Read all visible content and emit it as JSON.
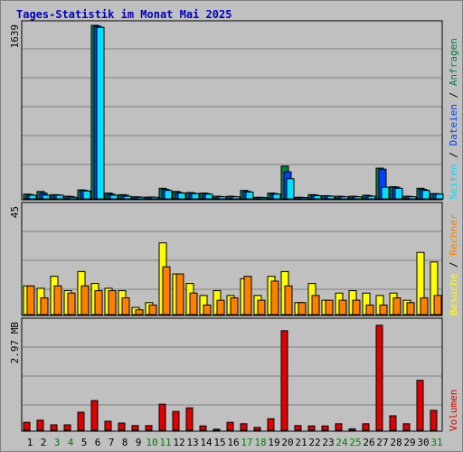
{
  "title": "Tages-Statistik im Monat Mai 2025",
  "colors": {
    "title": "#0000c0",
    "panel_bg": "#c0c0c0",
    "grid": "#808080",
    "anfragen": "#008040",
    "dateien": "#0040ff",
    "seiten": "#00e0ff",
    "besuche": "#ffff00",
    "rechner": "#ff8000",
    "volumen": "#e00000",
    "weekend": "#008000",
    "day": "#000000"
  },
  "chart_data": [
    {
      "type": "bar",
      "panel": "top",
      "scale_label": "1639",
      "ylim": [
        0,
        1639
      ],
      "categories": [
        "1",
        "2",
        "3",
        "4",
        "5",
        "6",
        "7",
        "8",
        "9",
        "10",
        "11",
        "12",
        "13",
        "14",
        "15",
        "16",
        "17",
        "18",
        "19",
        "20",
        "21",
        "22",
        "23",
        "24",
        "25",
        "26",
        "27",
        "28",
        "29",
        "30",
        "31"
      ],
      "weekend_days": [
        "3",
        "4",
        "10",
        "11",
        "17",
        "18",
        "24",
        "25",
        "31"
      ],
      "series": [
        {
          "name": "Anfragen",
          "color_key": "anfragen",
          "values": [
            45,
            70,
            40,
            25,
            85,
            1639,
            55,
            40,
            20,
            18,
            100,
            70,
            60,
            55,
            25,
            25,
            80,
            15,
            55,
            310,
            15,
            40,
            30,
            25,
            25,
            35,
            290,
            115,
            25,
            100,
            50
          ]
        },
        {
          "name": "Dateien",
          "color_key": "dateien",
          "values": [
            40,
            55,
            38,
            22,
            80,
            1630,
            45,
            35,
            18,
            16,
            90,
            60,
            55,
            50,
            22,
            22,
            70,
            14,
            50,
            255,
            14,
            35,
            28,
            22,
            22,
            30,
            280,
            110,
            22,
            90,
            48
          ]
        },
        {
          "name": "Seiten",
          "color_key": "seiten",
          "values": [
            35,
            35,
            35,
            15,
            75,
            1620,
            35,
            25,
            15,
            15,
            80,
            55,
            50,
            45,
            20,
            20,
            65,
            12,
            45,
            190,
            12,
            30,
            25,
            20,
            20,
            25,
            110,
            100,
            20,
            80,
            45
          ]
        }
      ]
    },
    {
      "type": "bar",
      "panel": "middle",
      "scale_label": "45",
      "ylim": [
        0,
        45
      ],
      "categories": [
        "1",
        "2",
        "3",
        "4",
        "5",
        "6",
        "7",
        "8",
        "9",
        "10",
        "11",
        "12",
        "13",
        "14",
        "15",
        "16",
        "17",
        "18",
        "19",
        "20",
        "21",
        "22",
        "23",
        "24",
        "25",
        "26",
        "27",
        "28",
        "29",
        "30",
        "31"
      ],
      "series": [
        {
          "name": "Besuche",
          "color_key": "besuche",
          "values": [
            12,
            11,
            16,
            10,
            18,
            13,
            11,
            10,
            3,
            5,
            30,
            17,
            13,
            8,
            10,
            8,
            15,
            8,
            16,
            18,
            5,
            13,
            6,
            9,
            10,
            9,
            8,
            9,
            6,
            26,
            22
          ]
        },
        {
          "name": "Rechner",
          "color_key": "rechner",
          "values": [
            12,
            7,
            12,
            9,
            12,
            10,
            10,
            7,
            2,
            4,
            20,
            17,
            9,
            4,
            6,
            7,
            16,
            6,
            14,
            12,
            5,
            8,
            6,
            6,
            6,
            4,
            4,
            7,
            5,
            7,
            8
          ]
        }
      ]
    },
    {
      "type": "bar",
      "panel": "bottom",
      "scale_label": "2.97 MB",
      "ylim": [
        0,
        2.97
      ],
      "categories": [
        "1",
        "2",
        "3",
        "4",
        "5",
        "6",
        "7",
        "8",
        "9",
        "10",
        "11",
        "12",
        "13",
        "14",
        "15",
        "16",
        "17",
        "18",
        "19",
        "20",
        "21",
        "22",
        "23",
        "24",
        "25",
        "26",
        "27",
        "28",
        "29",
        "30",
        "31"
      ],
      "series": [
        {
          "name": "Volumen",
          "color_key": "volumen",
          "values": [
            0.22,
            0.28,
            0.15,
            0.15,
            0.5,
            0.82,
            0.25,
            0.2,
            0.13,
            0.13,
            0.72,
            0.52,
            0.62,
            0.12,
            0.03,
            0.22,
            0.18,
            0.08,
            0.32,
            2.75,
            0.13,
            0.12,
            0.12,
            0.18,
            0.04,
            0.18,
            2.9,
            0.4,
            0.18,
            1.38,
            0.55
          ]
        }
      ]
    }
  ]
}
